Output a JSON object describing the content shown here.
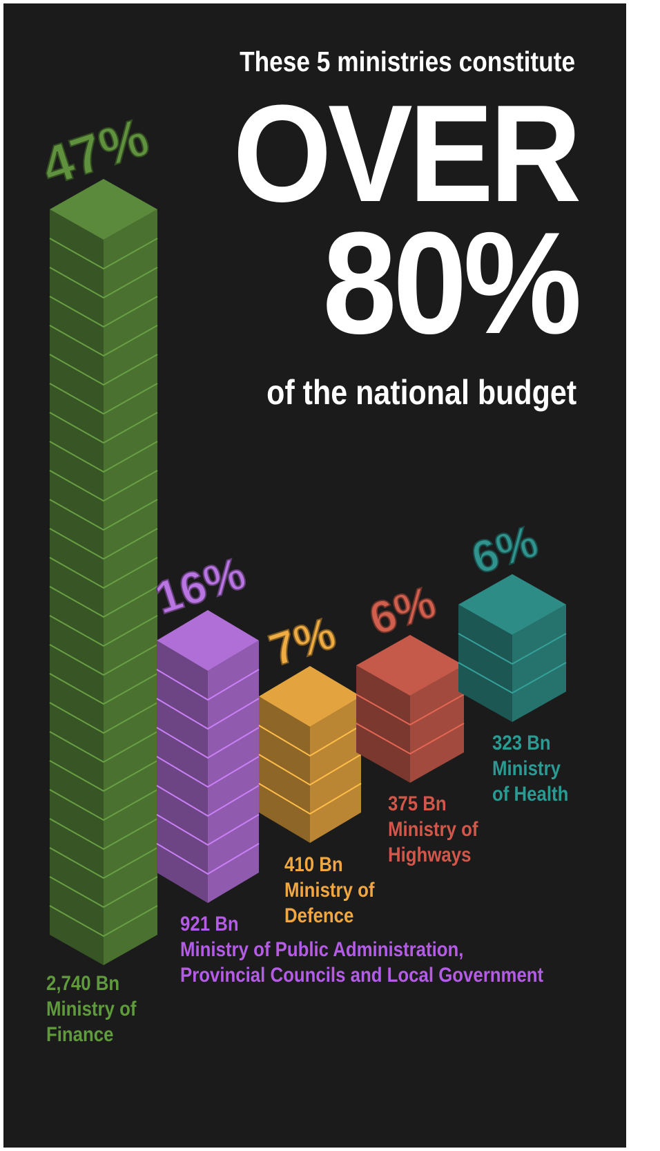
{
  "headline": {
    "top": "These 5 ministries constitute",
    "big_line1": "OVER",
    "big_line2": "80%",
    "bottom": "of the national budget"
  },
  "chart_data": {
    "type": "bar",
    "categories": [
      "Ministry of Finance",
      "Ministry of Public Administration, Provincial Councils and Local Government",
      "Ministry of Defence",
      "Ministry of Highways",
      "Ministry of Health"
    ],
    "values": [
      2740,
      921,
      410,
      375,
      323
    ],
    "unit": "Bn",
    "percent_labels": [
      "47%",
      "16%",
      "7%",
      "6%",
      "6%"
    ],
    "colors": [
      "#5b8a3c",
      "#b06fd6",
      "#e3a440",
      "#c65a4a",
      "#2e8c86"
    ]
  },
  "bars": [
    {
      "pct": "47%",
      "amount": "2,740 Bn",
      "name_lines": [
        "Ministry of",
        "Finance"
      ],
      "color": "#5b8a3c",
      "label_color": "#5f9a3c"
    },
    {
      "pct": "16%",
      "amount": "921 Bn",
      "name_lines": [
        "Ministry of Public Administration,",
        "Provincial Councils and Local Government"
      ],
      "color": "#b06fd6",
      "label_color": "#b45ce6"
    },
    {
      "pct": "7%",
      "amount": "410 Bn",
      "name_lines": [
        "Ministry of",
        "Defence"
      ],
      "color": "#e3a440",
      "label_color": "#f0a741"
    },
    {
      "pct": "6%",
      "amount": "375 Bn",
      "name_lines": [
        "Ministry of",
        "Highways"
      ],
      "color": "#c65a4a",
      "label_color": "#d1574a"
    },
    {
      "pct": "6%",
      "amount": "323 Bn",
      "name_lines": [
        "Ministry",
        "of Health"
      ],
      "color": "#2e8c86",
      "label_color": "#2a9a93"
    }
  ]
}
